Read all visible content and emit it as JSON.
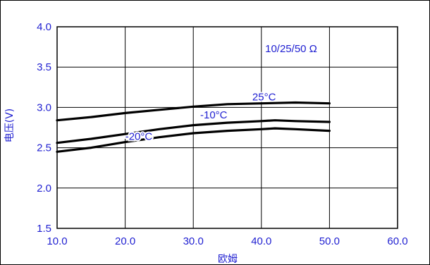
{
  "chart_data": {
    "type": "line",
    "ylabel": "电压(V)",
    "xlabel": "欧姆",
    "annotation": "10/25/50 Ω",
    "xlim": [
      10.0,
      60.0
    ],
    "ylim": [
      1.5,
      4.0
    ],
    "xticks": [
      "10.0",
      "20.0",
      "30.0",
      "40.0",
      "50.0",
      "60.0"
    ],
    "yticks": [
      "1.5",
      "2.0",
      "2.5",
      "3.0",
      "3.5",
      "4.0"
    ],
    "grid": true,
    "series": [
      {
        "name": "25°C",
        "x": [
          10,
          15,
          20,
          25,
          30,
          35,
          40,
          45,
          50
        ],
        "y": [
          2.84,
          2.88,
          2.93,
          2.97,
          3.01,
          3.04,
          3.05,
          3.06,
          3.05
        ]
      },
      {
        "name": "-10°C",
        "x": [
          10,
          15,
          20,
          25,
          30,
          35,
          40,
          42,
          45,
          50
        ],
        "y": [
          2.56,
          2.61,
          2.67,
          2.73,
          2.78,
          2.81,
          2.83,
          2.84,
          2.83,
          2.82
        ]
      },
      {
        "name": "-20°C",
        "x": [
          10,
          15,
          20,
          25,
          30,
          35,
          40,
          42,
          45,
          50
        ],
        "y": [
          2.45,
          2.5,
          2.57,
          2.63,
          2.68,
          2.71,
          2.73,
          2.74,
          2.73,
          2.71
        ]
      }
    ]
  },
  "colors": {
    "axis": "#000000",
    "grid": "#000000",
    "text": "#1f1fd1",
    "line": "#000000"
  }
}
